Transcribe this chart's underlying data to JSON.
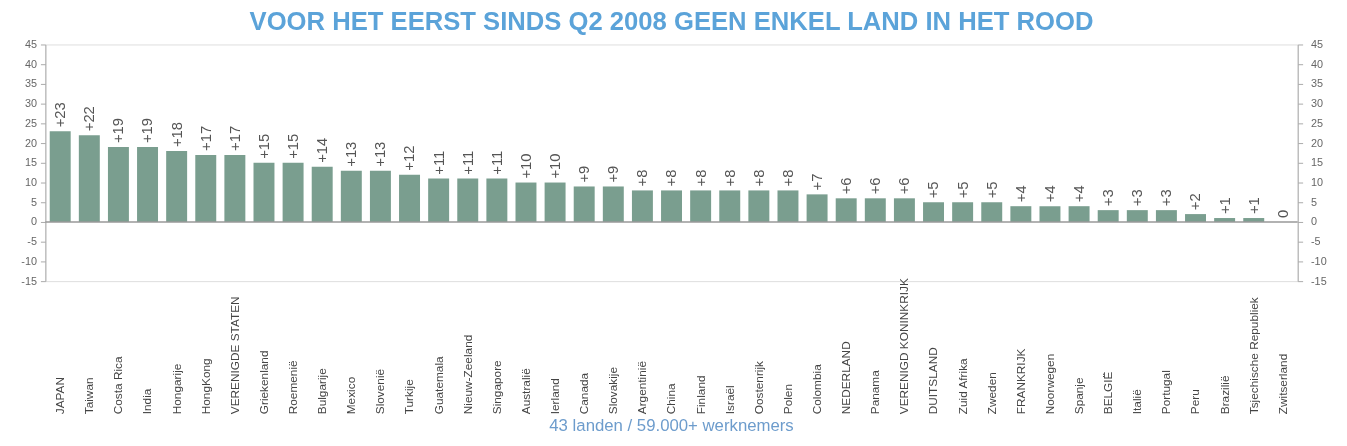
{
  "chart_data": {
    "type": "bar",
    "title": "VOOR HET EERST SINDS Q2 2008 GEEN ENKEL LAND IN HET ROOD",
    "categories": [
      "JAPAN",
      "Taiwan",
      "Costa Rica",
      "India",
      "Hongarije",
      "HongKong",
      "VERENIGDE STATEN",
      "Griekenland",
      "Roemenië",
      "Bulgarije",
      "Mexico",
      "Slovenië",
      "Turkije",
      "Guatemala",
      "Nieuw-Zeeland",
      "Singapore",
      "Australië",
      "Ierland",
      "Canada",
      "Slovakije",
      "Argentinië",
      "China",
      "Finland",
      "Israël",
      "Oostenrijk",
      "Polen",
      "Colombia",
      "NEDERLAND",
      "Panama",
      "VERENIGD KONINKRIJK",
      "DUITSLAND",
      "Zuid Afrika",
      "Zweden",
      "FRANKRIJK",
      "Noorwegen",
      "Spanje",
      "BELGIË",
      "Italië",
      "Portugal",
      "Peru",
      "Brazilië",
      "Tsjechische Republiek",
      "Zwitserland"
    ],
    "values": [
      23,
      22,
      19,
      19,
      18,
      17,
      17,
      15,
      15,
      14,
      13,
      13,
      12,
      11,
      11,
      11,
      10,
      10,
      9,
      9,
      8,
      8,
      8,
      8,
      8,
      8,
      7,
      6,
      6,
      6,
      5,
      5,
      5,
      4,
      4,
      4,
      3,
      3,
      3,
      2,
      1,
      1,
      0
    ],
    "value_labels": [
      "+23",
      "+22",
      "+19",
      "+19",
      "+18",
      "+17",
      "+17",
      "+15",
      "+15",
      "+14",
      "+13",
      "+13",
      "+12",
      "+11",
      "+11",
      "+11",
      "+10",
      "+10",
      "+9",
      "+9",
      "+8",
      "+8",
      "+8",
      "+8",
      "+8",
      "+8",
      "+7",
      "+6",
      "+6",
      "+6",
      "+5",
      "+5",
      "+5",
      "+4",
      "+4",
      "+4",
      "+3",
      "+3",
      "+3",
      "+2",
      "+1",
      "+1",
      "0"
    ],
    "color": "#7a9e8f",
    "ylim": [
      -15,
      45
    ],
    "yticks": [
      -15,
      -10,
      -5,
      0,
      5,
      10,
      15,
      20,
      25,
      30,
      35,
      40,
      45
    ],
    "y2lim": [
      -15,
      45
    ],
    "y2ticks": [
      -15,
      -10,
      -5,
      0,
      5,
      10,
      15,
      20,
      25,
      30,
      35,
      40,
      45
    ],
    "ref_lines": [
      {
        "axis": "y",
        "value": 0,
        "color": "#999999"
      }
    ],
    "grid": false,
    "legend": false,
    "annotations": [
      "43 landen / 59.000+ werknemers"
    ]
  }
}
